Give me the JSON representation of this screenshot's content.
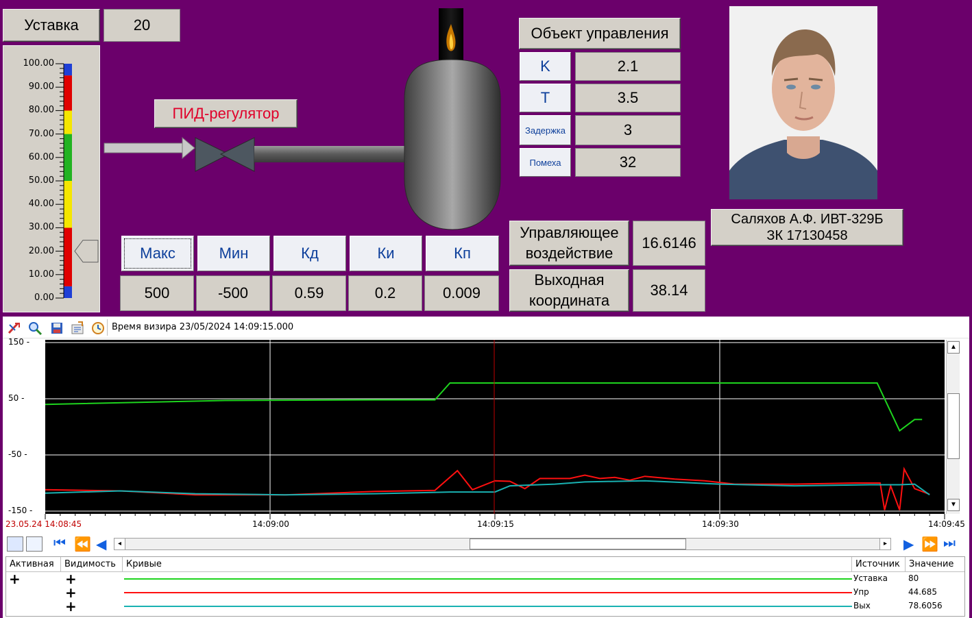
{
  "setpoint": {
    "label": "Уставка",
    "value": "20"
  },
  "gauge": {
    "ticks": [
      "100.00",
      "90.00",
      "80.00",
      "70.00",
      "60.00",
      "50.00",
      "40.00",
      "30.00",
      "20.00",
      "10.00",
      "0.00"
    ],
    "pointer_value": 20,
    "colors": {
      "blue": "#1f3fd6",
      "red": "#e00000",
      "yellow": "#f5e600",
      "green": "#22b322"
    }
  },
  "pid_label": "ПИД-регулятор",
  "object": {
    "title": "Объект управления",
    "params": [
      {
        "label": "K",
        "value": "2.1"
      },
      {
        "label": "T",
        "value": "3.5"
      },
      {
        "label": "Задержка",
        "value": "3"
      },
      {
        "label": "Помеха",
        "value": "32"
      }
    ]
  },
  "student": {
    "line1": "Саляхов А.Ф. ИВТ-329Б",
    "line2": "ЗК 17130458"
  },
  "pid_params": {
    "labels": [
      "Макс",
      "Мин",
      "Кд",
      "Ки",
      "Кп"
    ],
    "values": [
      "500",
      "-500",
      "0.59",
      "0.2",
      "0.009"
    ]
  },
  "control": {
    "label": "Управляющее воздействие",
    "value": "16.6146"
  },
  "output": {
    "label": "Выходная координата",
    "value": "38.14"
  },
  "trend": {
    "cursor_time": "Время визира 23/05/2024 14:09:15.000",
    "y_ticks": [
      "150",
      "50",
      "-50",
      "-150"
    ],
    "x_start": "23.05.24 14:08:45",
    "x_ticks": [
      "14:09:00",
      "14:09:15",
      "14:09:30",
      "14:09:45"
    ],
    "icons": [
      "cursor-icon",
      "zoom-icon",
      "save-icon",
      "export-icon",
      "clock-icon"
    ],
    "colors": {
      "setpoint": "#1ed41e",
      "control": "#ff1010",
      "output": "#19b2b2",
      "grid": "#ffffff",
      "cursor": "#c00000"
    }
  },
  "chart_data": {
    "type": "line",
    "ylim": [
      -150,
      150
    ],
    "x_range": [
      "14:08:45",
      "14:09:45"
    ],
    "series": [
      {
        "name": "Уставка",
        "points": [
          [
            0,
            40
          ],
          [
            12,
            47
          ],
          [
            22,
            48
          ],
          [
            26,
            48
          ],
          [
            27,
            78
          ],
          [
            46,
            78
          ],
          [
            54,
            78
          ],
          [
            55.5,
            78
          ],
          [
            57,
            -7
          ],
          [
            58,
            13
          ],
          [
            58.5,
            13
          ]
        ]
      },
      {
        "name": "Упр",
        "points": [
          [
            0,
            -112
          ],
          [
            5,
            -114
          ],
          [
            10,
            -121
          ],
          [
            16,
            -121
          ],
          [
            22,
            -115
          ],
          [
            26,
            -113
          ],
          [
            27.5,
            -78
          ],
          [
            28.5,
            -112
          ],
          [
            30,
            -96
          ],
          [
            31,
            -97
          ],
          [
            32,
            -110
          ],
          [
            33,
            -92
          ],
          [
            35,
            -92
          ],
          [
            36,
            -86
          ],
          [
            37,
            -92
          ],
          [
            38,
            -90
          ],
          [
            39,
            -95
          ],
          [
            40,
            -88
          ],
          [
            42,
            -93
          ],
          [
            44,
            -96
          ],
          [
            46,
            -102
          ],
          [
            50,
            -102
          ],
          [
            54,
            -100
          ],
          [
            55.7,
            -100
          ],
          [
            56,
            -148
          ],
          [
            56.4,
            -105
          ],
          [
            57,
            -148
          ],
          [
            57.3,
            -75
          ],
          [
            58,
            -110
          ],
          [
            59,
            -120
          ]
        ]
      },
      {
        "name": "Вых",
        "points": [
          [
            0,
            -118
          ],
          [
            5,
            -114
          ],
          [
            10,
            -119
          ],
          [
            16,
            -121
          ],
          [
            22,
            -119
          ],
          [
            27,
            -116
          ],
          [
            30,
            -116
          ],
          [
            31,
            -105
          ],
          [
            34,
            -102
          ],
          [
            36,
            -98
          ],
          [
            40,
            -96
          ],
          [
            45,
            -102
          ],
          [
            50,
            -105
          ],
          [
            55,
            -103
          ],
          [
            57,
            -103
          ],
          [
            58,
            -102
          ],
          [
            59,
            -121
          ]
        ]
      }
    ]
  },
  "legend": {
    "headers": {
      "active": "Активная",
      "visible": "Видимость",
      "curves": "Кривые",
      "source": "Источник",
      "value": "Значение"
    },
    "rows": [
      {
        "active": "+",
        "visible": "+",
        "source": "Уставка",
        "value": "80",
        "color": "#1ed41e"
      },
      {
        "active": "",
        "visible": "+",
        "source": "Упр",
        "value": "44.685",
        "color": "#ff1010"
      },
      {
        "active": "",
        "visible": "+",
        "source": "Вых",
        "value": "78.6056",
        "color": "#19b2b2"
      }
    ]
  }
}
